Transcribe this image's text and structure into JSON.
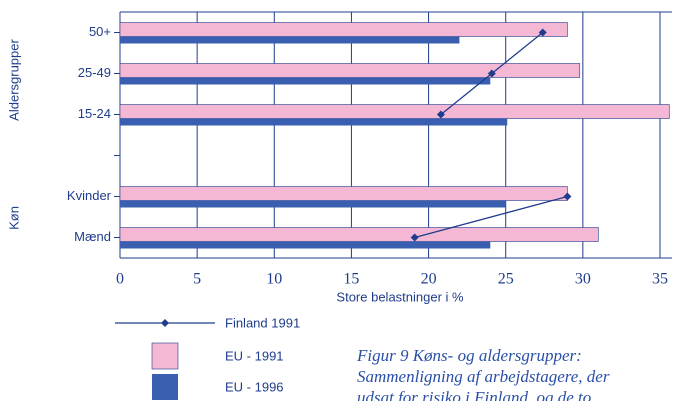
{
  "chart_data": {
    "type": "hbar",
    "categories": [
      "50+",
      "25-49",
      "15-24",
      null,
      "Kvinder",
      "Mænd"
    ],
    "groups": [
      "Aldersgrupper",
      "Køn"
    ],
    "series": [
      {
        "name": "EU - 1991",
        "color": "#f4b8d4",
        "values": [
          29.0,
          29.8,
          35.6,
          null,
          29.0,
          31.0
        ]
      },
      {
        "name": "EU - 1996",
        "color": "#3a5fb0",
        "values": [
          22.0,
          24.0,
          25.1,
          null,
          25.0,
          24.0
        ]
      },
      {
        "name": "Finland 1991",
        "color": "#1f3d8c",
        "kind": "line",
        "values": [
          27.4,
          24.1,
          20.8,
          null,
          29.0,
          19.1
        ]
      }
    ],
    "xlim": [
      0,
      35
    ],
    "xticks": [
      0,
      5,
      10,
      15,
      20,
      25,
      30,
      35
    ],
    "xlabel": "Store belastninger i %",
    "grid": true,
    "caption": [
      "Figur 9     Køns- og aldersgrupper:",
      "Sammenligning af arbejdstagere, der",
      "udsat for risiko i Finland, og de to"
    ]
  }
}
